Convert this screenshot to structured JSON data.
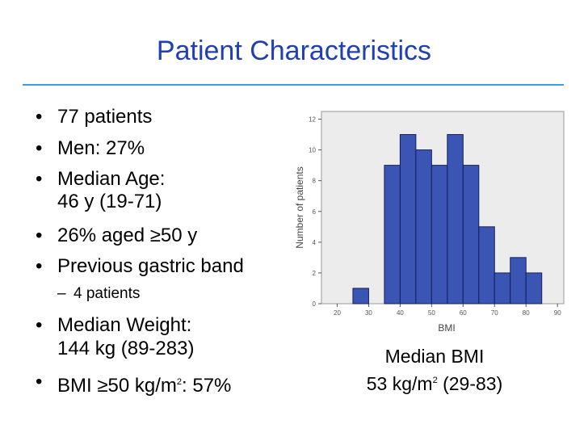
{
  "slide": {
    "title": "Patient Characteristics",
    "bullets": [
      {
        "text": "77 patients"
      },
      {
        "text": "Men: 27%"
      },
      {
        "text": "Median Age:",
        "line2": "46 y (19-71)"
      },
      {
        "text": "26% aged ≥50 y"
      },
      {
        "text": "Previous gastric band"
      },
      {
        "sub": "4 patients"
      },
      {
        "text": "Median Weight:",
        "line2": "144 kg (89-283)"
      },
      {
        "text_pre": "BMI ≥50 kg/m",
        "sup": "2",
        "text_post": ": 57%"
      }
    ],
    "median_bmi": {
      "label": "Median BMI",
      "value_pre": "53 kg/m",
      "sup": "2",
      "value_post": " (29-83)"
    }
  },
  "chart_data": {
    "type": "bar",
    "xlabel": "BMI",
    "ylabel": "Number of patients",
    "xlim": [
      15,
      92
    ],
    "ylim": [
      0,
      12.5
    ],
    "xticks": [
      20,
      30,
      40,
      50,
      60,
      70,
      80,
      90
    ],
    "yticks": [
      0,
      2,
      4,
      6,
      8,
      10,
      12
    ],
    "bin_width": 5,
    "bins": [
      {
        "start": 25,
        "count": 1
      },
      {
        "start": 30,
        "count": 0
      },
      {
        "start": 35,
        "count": 9
      },
      {
        "start": 40,
        "count": 11
      },
      {
        "start": 45,
        "count": 10
      },
      {
        "start": 50,
        "count": 9
      },
      {
        "start": 55,
        "count": 11
      },
      {
        "start": 60,
        "count": 9
      },
      {
        "start": 65,
        "count": 5
      },
      {
        "start": 70,
        "count": 2
      },
      {
        "start": 75,
        "count": 3
      },
      {
        "start": 80,
        "count": 2
      }
    ],
    "bar_color": "#3a55b4",
    "bar_edge": "#13205a",
    "plot_bg": "#ececec"
  }
}
